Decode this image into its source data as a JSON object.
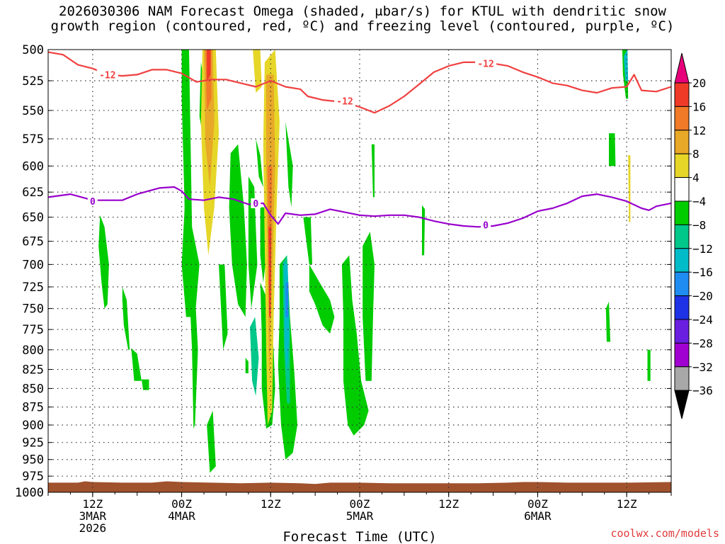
{
  "title": "2026030306 NAM Forecast Omega (shaded, μbar/s) for KTUL with dendritic snow\ngrowth region (contoured, red, ºC) and freezing level (contoured, purple, ºC)",
  "credit": "coolwx.com/models",
  "colors": {
    "red_contour": "#f04040",
    "purple_contour": "#9900cc",
    "ground": "#a0522d",
    "grid": "#333333"
  },
  "chart_data": {
    "type": "heatmap",
    "xlabel": "Forecast Time (UTC)",
    "ylabel": "",
    "x_range_hours": [
      0,
      84
    ],
    "y_range_mb": [
      500,
      1000
    ],
    "y_scale": "pressure",
    "grid": true,
    "y_ticks": [
      500,
      525,
      550,
      575,
      600,
      625,
      650,
      675,
      700,
      725,
      750,
      775,
      800,
      825,
      850,
      875,
      900,
      925,
      950,
      975,
      1000
    ],
    "x_ticks": [
      {
        "hour": 6,
        "lines": [
          "12Z",
          "3MAR",
          "2026"
        ]
      },
      {
        "hour": 18,
        "lines": [
          "00Z",
          "4MAR"
        ]
      },
      {
        "hour": 30,
        "lines": [
          "12Z"
        ]
      },
      {
        "hour": 42,
        "lines": [
          "00Z",
          "5MAR"
        ]
      },
      {
        "hour": 54,
        "lines": [
          "12Z"
        ]
      },
      {
        "hour": 66,
        "lines": [
          "00Z",
          "6MAR"
        ]
      },
      {
        "hour": 78,
        "lines": [
          "12Z"
        ]
      }
    ],
    "colorbar": {
      "labels": [
        "20",
        "16",
        "12",
        "8",
        "4",
        "−4",
        "−8",
        "−12",
        "−16",
        "−20",
        "−24",
        "−28",
        "−32",
        "−36"
      ],
      "bins": [
        {
          "color": "#e8007a"
        },
        {
          "color": "#f03a28"
        },
        {
          "color": "#f07a28"
        },
        {
          "color": "#e8a828"
        },
        {
          "color": "#e6d628"
        },
        {
          "color": "#ffffff"
        },
        {
          "color": "#00cc00"
        },
        {
          "color": "#00c88a"
        },
        {
          "color": "#00bcc8"
        },
        {
          "color": "#1e8cf0"
        },
        {
          "color": "#1e32e6"
        },
        {
          "color": "#6a1ee0"
        },
        {
          "color": "#a000d0"
        },
        {
          "color": "#a8a8a8"
        },
        {
          "color": "#000000"
        }
      ]
    },
    "series": [
      {
        "name": "-12",
        "contour": "dendritic_-12C",
        "points": [
          [
            0,
            502
          ],
          [
            2,
            504
          ],
          [
            4,
            512
          ],
          [
            6,
            515
          ],
          [
            8,
            520
          ],
          [
            10,
            521
          ],
          [
            12,
            520
          ],
          [
            14,
            516
          ],
          [
            16,
            516
          ],
          [
            18,
            519
          ],
          [
            20,
            526
          ],
          [
            22,
            524
          ],
          [
            24,
            524
          ],
          [
            26,
            527
          ],
          [
            28,
            530
          ],
          [
            30,
            525
          ],
          [
            32,
            530
          ],
          [
            34,
            532
          ],
          [
            35,
            538
          ],
          [
            37,
            541
          ],
          [
            40,
            543
          ],
          [
            42,
            547
          ],
          [
            44,
            552
          ],
          [
            46,
            546
          ],
          [
            48,
            538
          ],
          [
            50,
            528
          ],
          [
            52,
            518
          ],
          [
            54,
            513
          ],
          [
            56,
            510
          ],
          [
            58,
            510
          ],
          [
            60,
            511
          ],
          [
            62,
            513
          ],
          [
            64,
            518
          ],
          [
            66,
            522
          ],
          [
            68,
            527
          ],
          [
            70,
            529
          ],
          [
            72,
            533
          ],
          [
            74,
            535
          ],
          [
            76,
            531
          ],
          [
            78,
            530
          ],
          [
            79,
            520
          ],
          [
            80,
            533
          ],
          [
            82,
            534
          ],
          [
            84,
            530
          ]
        ],
        "labels": [
          {
            "hour": 8,
            "mb": 520
          },
          {
            "hour": 40,
            "mb": 542
          },
          {
            "hour": 59,
            "mb": 511
          }
        ]
      },
      {
        "name": "0",
        "contour": "freezing_0C",
        "points": [
          [
            0,
            630
          ],
          [
            3,
            627
          ],
          [
            6,
            633
          ],
          [
            10,
            633
          ],
          [
            12,
            627
          ],
          [
            15,
            621
          ],
          [
            17,
            620
          ],
          [
            18,
            624
          ],
          [
            19,
            632
          ],
          [
            21,
            633
          ],
          [
            23,
            630
          ],
          [
            25,
            632
          ],
          [
            27,
            637
          ],
          [
            29,
            636
          ],
          [
            30,
            648
          ],
          [
            31,
            657
          ],
          [
            32,
            646
          ],
          [
            34,
            648
          ],
          [
            36,
            647
          ],
          [
            38,
            642
          ],
          [
            40,
            645
          ],
          [
            42,
            648
          ],
          [
            44,
            649
          ],
          [
            46,
            648
          ],
          [
            48,
            648
          ],
          [
            50,
            650
          ],
          [
            52,
            654
          ],
          [
            54,
            657
          ],
          [
            56,
            659
          ],
          [
            58,
            660
          ],
          [
            60,
            659
          ],
          [
            62,
            656
          ],
          [
            64,
            651
          ],
          [
            66,
            644
          ],
          [
            68,
            641
          ],
          [
            70,
            636
          ],
          [
            72,
            629
          ],
          [
            74,
            627
          ],
          [
            76,
            630
          ],
          [
            78,
            634
          ],
          [
            80,
            641
          ],
          [
            81,
            643
          ],
          [
            82,
            639
          ],
          [
            84,
            636
          ]
        ],
        "labels": [
          {
            "hour": 6,
            "mb": 634
          },
          {
            "hour": 28,
            "mb": 636
          },
          {
            "hour": 59,
            "mb": 658
          }
        ]
      }
    ]
  }
}
